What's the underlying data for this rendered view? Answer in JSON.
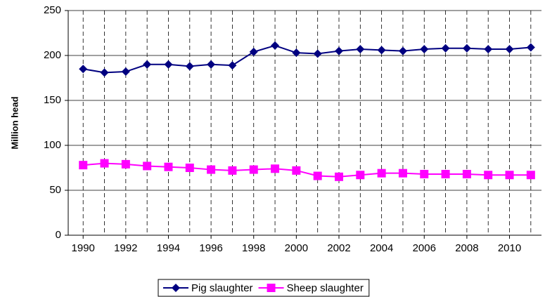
{
  "chart_data": {
    "type": "line",
    "y_label": "Million head",
    "x": [
      1990,
      1991,
      1992,
      1993,
      1994,
      1995,
      1996,
      1997,
      1998,
      1999,
      2000,
      2001,
      2002,
      2003,
      2004,
      2005,
      2006,
      2007,
      2008,
      2009,
      2010,
      2011
    ],
    "series": [
      {
        "name": "Pig slaughter",
        "color": "#000080",
        "marker": "diamond",
        "values": [
          185,
          181,
          182,
          190,
          190,
          188,
          190,
          189,
          204,
          211,
          203,
          202,
          205,
          207,
          206,
          205,
          207,
          208,
          208,
          207,
          207,
          209
        ]
      },
      {
        "name": "Sheep slaughter",
        "color": "#ff00ff",
        "marker": "square",
        "values": [
          78,
          80,
          79,
          77,
          76,
          75,
          73,
          72,
          73,
          74,
          72,
          66,
          65,
          67,
          69,
          69,
          68,
          68,
          68,
          67,
          67,
          67
        ]
      }
    ],
    "xlim": [
      1989.3,
      2011.5
    ],
    "xticks": [
      1990,
      1992,
      1994,
      1996,
      1998,
      2000,
      2002,
      2004,
      2006,
      2008,
      2010
    ],
    "ylim": [
      0,
      250
    ],
    "yticks": [
      0,
      50,
      100,
      150,
      200,
      250
    ],
    "grid": true,
    "legend": "bottom"
  }
}
